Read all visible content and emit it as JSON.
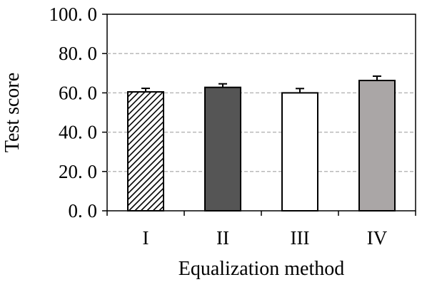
{
  "chart_data": {
    "type": "bar",
    "title": "",
    "xlabel": "Equalization method",
    "ylabel": "Test score",
    "categories": [
      "I",
      "II",
      "III",
      "IV"
    ],
    "values": [
      60.5,
      62.8,
      60.0,
      66.3
    ],
    "errors": [
      1.8,
      1.8,
      2.2,
      2.2
    ],
    "ylim": [
      0,
      100
    ],
    "yticks": [
      "0. 0",
      "20. 0",
      "40. 0",
      "60. 0",
      "80. 0",
      "100. 0"
    ],
    "ytick_values": [
      0,
      20,
      40,
      60,
      80,
      100
    ],
    "grid": true,
    "legend": "none",
    "bar_fills": [
      "hatched",
      "#555555",
      "#ffffff",
      "#aaa6a6"
    ]
  }
}
